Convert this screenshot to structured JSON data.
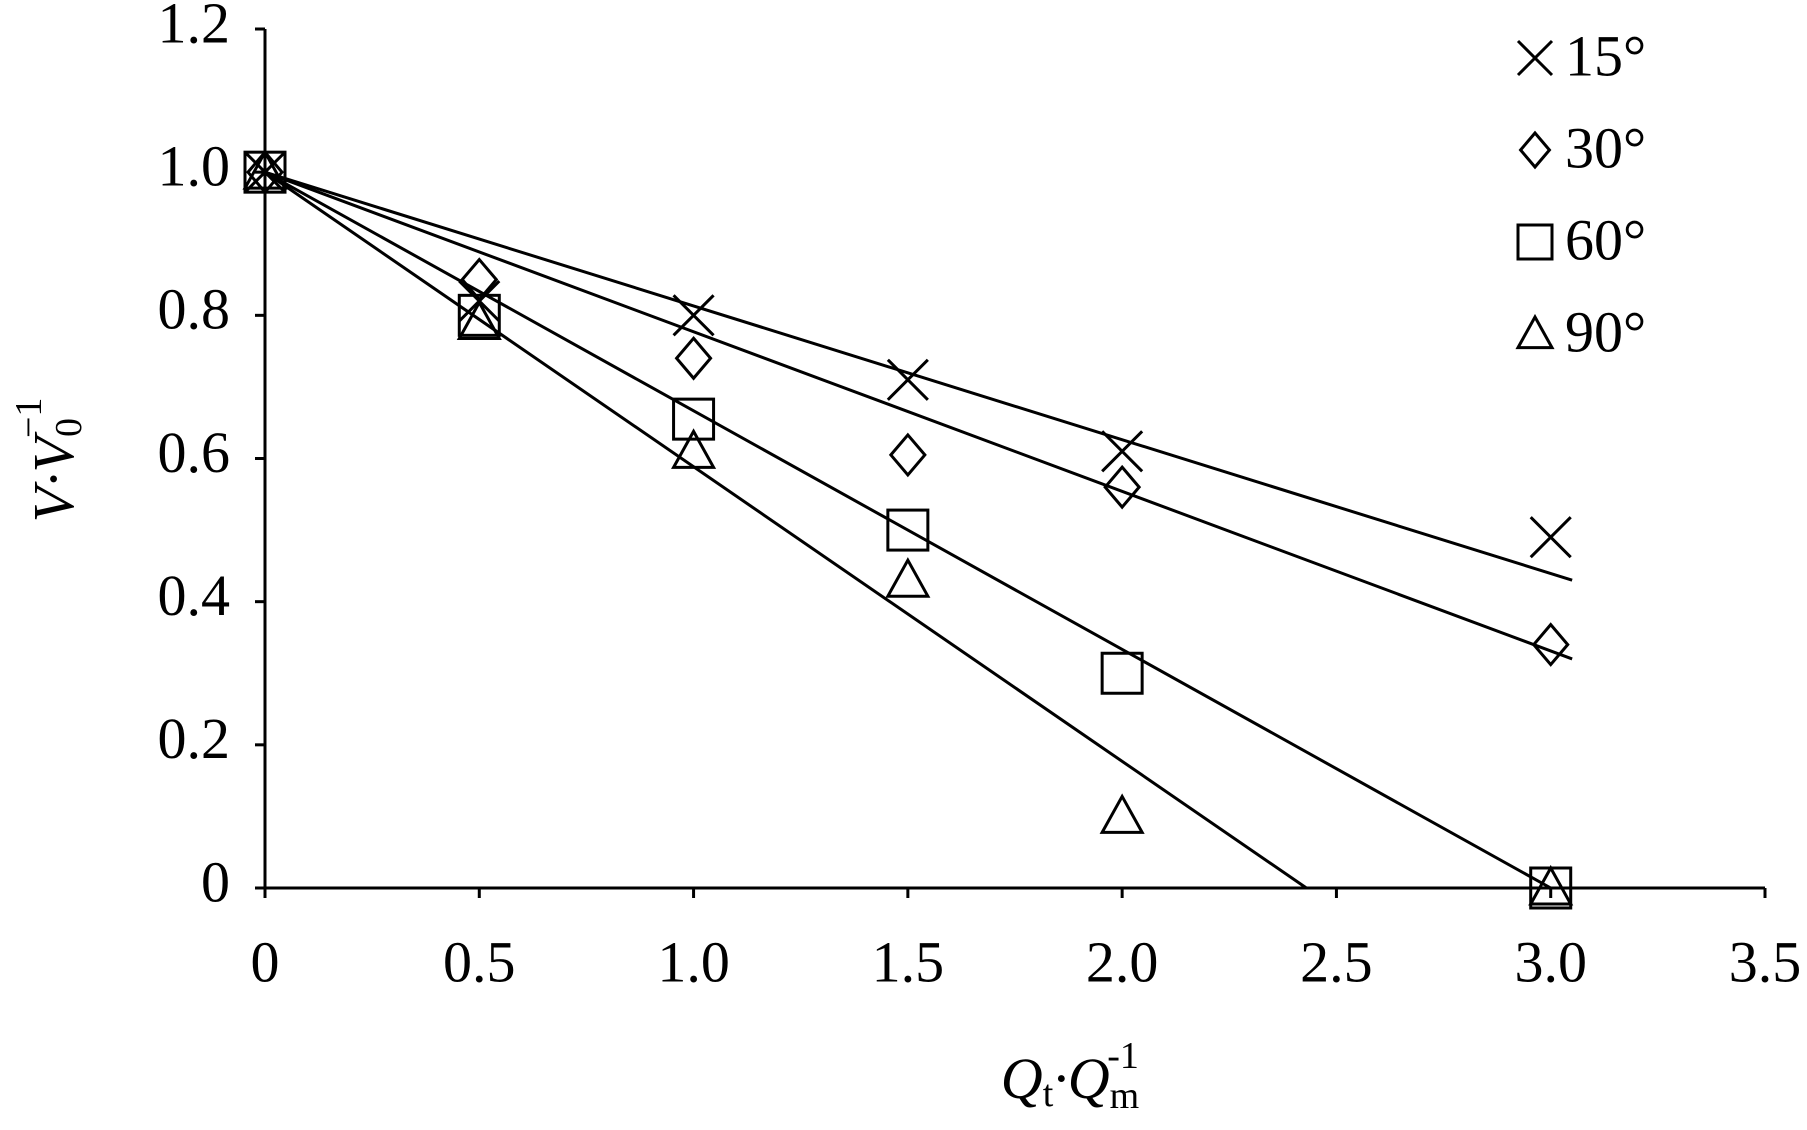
{
  "chart_data": {
    "type": "scatter",
    "x_label": [
      "Q",
      "t",
      "·Q",
      "m",
      "-1"
    ],
    "y_label": [
      "V·V",
      "0",
      "−1"
    ],
    "x": [
      0,
      0.5,
      1.0,
      1.5,
      2.0,
      3.0
    ],
    "xlim": [
      0,
      3.5
    ],
    "xticks": [
      0,
      0.5,
      {
        "value": 1,
        "label": "1.0"
      },
      1.5,
      {
        "value": 2,
        "label": "2.0"
      },
      2.5,
      {
        "value": 3,
        "label": "3.0"
      },
      3.5
    ],
    "ylim": [
      0,
      1.2
    ],
    "yticks": [
      0,
      0.2,
      0.4,
      0.6,
      0.8,
      {
        "value": 1,
        "label": "1.0"
      },
      1.2
    ],
    "grid": false,
    "legend": "top-right",
    "series": [
      {
        "name": "15°",
        "marker": "x",
        "color": "#000000",
        "values": [
          1.0,
          0.82,
          0.8,
          0.71,
          0.61,
          0.49
        ],
        "trend_x": [
          0,
          3.05
        ],
        "trend_y": [
          1.0,
          0.43
        ]
      },
      {
        "name": "30°",
        "marker": "diamond",
        "color": "#000000",
        "values": [
          1.0,
          0.85,
          0.74,
          0.605,
          0.56,
          0.34
        ],
        "trend_x": [
          0,
          3.05
        ],
        "trend_y": [
          1.0,
          0.32
        ]
      },
      {
        "name": "60°",
        "marker": "square",
        "color": "#000000",
        "values": [
          1.0,
          0.8,
          0.655,
          0.5,
          0.3,
          0.0
        ],
        "trend_x": [
          0,
          3.0
        ],
        "trend_y": [
          1.0,
          0.0
        ]
      },
      {
        "name": "90°",
        "marker": "triangle",
        "color": "#000000",
        "values": [
          1.0,
          0.79,
          0.61,
          0.43,
          0.1,
          0.0
        ],
        "trend_x": [
          0,
          2.43
        ],
        "trend_y": [
          1.0,
          0.0
        ]
      }
    ]
  }
}
